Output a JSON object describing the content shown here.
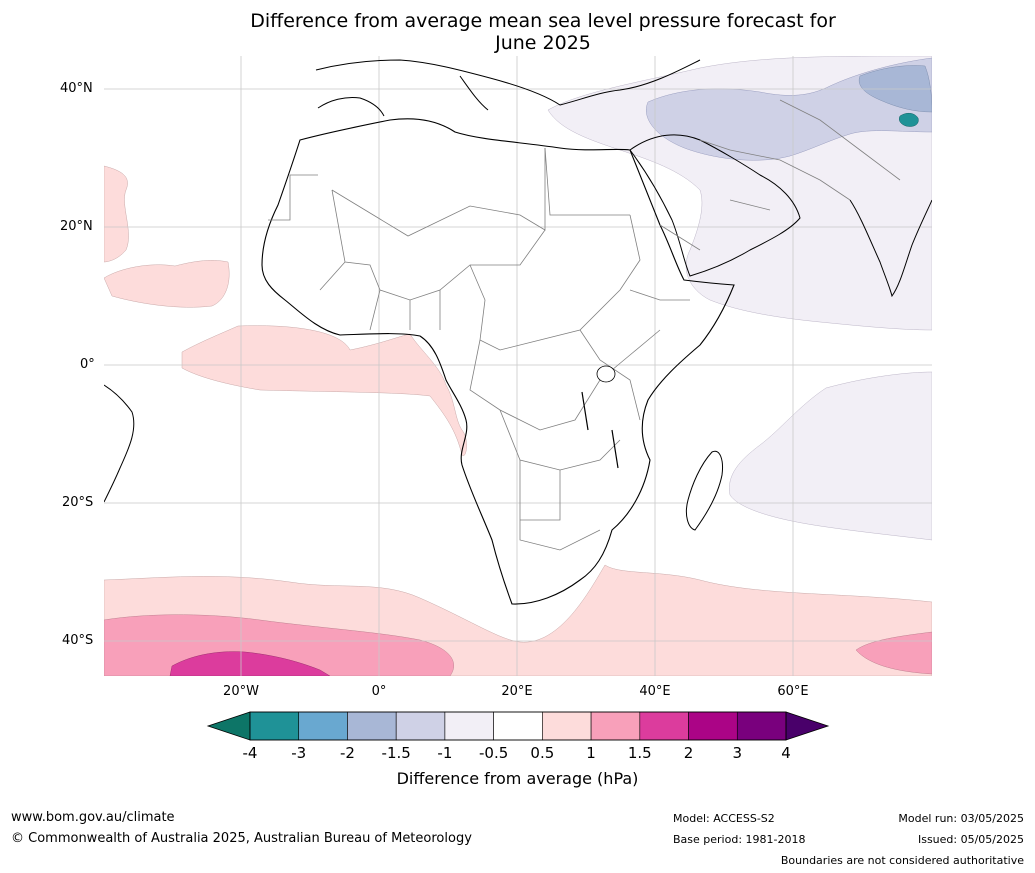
{
  "title_line1": "Difference from average mean sea level pressure forecast for",
  "title_line2": "June 2025",
  "map": {
    "region": "Africa",
    "lat_labels": [
      "40°N",
      "20°N",
      "0°",
      "20°S",
      "40°S"
    ],
    "lon_labels": [
      "20°W",
      "0°",
      "20°E",
      "40°E",
      "60°E"
    ],
    "gridlines": true,
    "ocean_color": "#ffffff",
    "land_fill": "#ffffff",
    "coast_color": "#000000",
    "border_color": "#808080"
  },
  "colorbar": {
    "ticks": [
      "-4",
      "-3",
      "-2",
      "-1.5",
      "-1",
      "-0.5",
      "0.5",
      "1",
      "1.5",
      "2",
      "3",
      "4"
    ],
    "colors": [
      "#0d7567",
      "#1f9297",
      "#69a8d0",
      "#a8b7d6",
      "#cfd1e6",
      "#f2eff6",
      "#ffffff",
      "#fddcdb",
      "#f8a0ba",
      "#dc3c9d",
      "#ab0486",
      "#79007d",
      "#49006a"
    ],
    "label": "Difference from average (hPa)"
  },
  "footer": {
    "website": "www.bom.gov.au/climate",
    "copyright": "© Commonwealth of Australia 2025, Australian Bureau of Meteorology",
    "model": "Model: ACCESS-S2",
    "base_period": "Base period: 1981-2018",
    "model_run": "Model run: 03/05/2025",
    "issued": "Issued: 05/05/2025",
    "disclaimer": "Boundaries are not considered authoritative"
  }
}
